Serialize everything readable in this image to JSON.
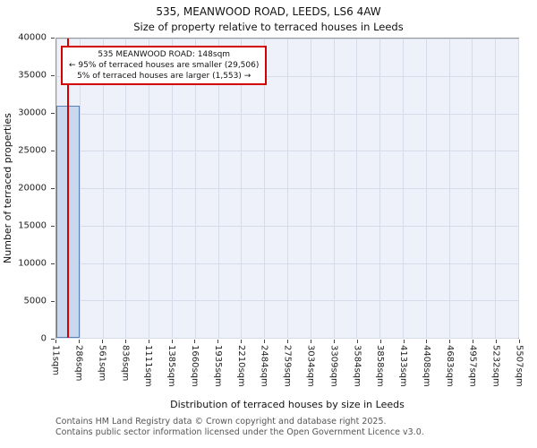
{
  "title": {
    "line1": "535, MEANWOOD ROAD, LEEDS, LS6 4AW",
    "line2": "Size of property relative to terraced houses in Leeds"
  },
  "annotation": {
    "line1": "535 MEANWOOD ROAD: 148sqm",
    "line2": "← 95% of terraced houses are smaller (29,506)",
    "line3": "5% of terraced houses are larger (1,553) →"
  },
  "footer": {
    "line1": "Contains HM Land Registry data © Crown copyright and database right 2025.",
    "line2": "Contains public sector information licensed under the Open Government Licence v3.0."
  },
  "chart_data": {
    "type": "bar",
    "title": "535, MEANWOOD ROAD, LEEDS, LS6 4AW",
    "subtitle": "Size of property relative to terraced houses in Leeds",
    "xlabel": "Distribution of terraced houses by size in Leeds",
    "ylabel": "Number of terraced properties",
    "ylim": [
      0,
      40000
    ],
    "yticks": [
      0,
      5000,
      10000,
      15000,
      20000,
      25000,
      30000,
      35000,
      40000
    ],
    "bin_edges_sqm": [
      11,
      286,
      561,
      836,
      1111,
      1385,
      1660,
      1935,
      2210,
      2484,
      2759,
      3034,
      3309,
      3584,
      3858,
      4133,
      4408,
      4683,
      4957,
      5232,
      5507
    ],
    "x_tick_labels": [
      "11sqm",
      "286sqm",
      "561sqm",
      "836sqm",
      "1111sqm",
      "1385sqm",
      "1660sqm",
      "1935sqm",
      "2210sqm",
      "2484sqm",
      "2759sqm",
      "3034sqm",
      "3309sqm",
      "3584sqm",
      "3858sqm",
      "4133sqm",
      "4408sqm",
      "4683sqm",
      "4957sqm",
      "5232sqm",
      "5507sqm"
    ],
    "values": [
      31000,
      0,
      0,
      0,
      0,
      0,
      0,
      0,
      0,
      0,
      0,
      0,
      0,
      0,
      0,
      0,
      0,
      0,
      0,
      0
    ],
    "grid": true,
    "legend": null,
    "marker": {
      "label": "535 MEANWOOD ROAD",
      "value_sqm": 148,
      "smaller_pct": 95,
      "smaller_count": "29,506",
      "larger_pct": 5,
      "larger_count": "1,553"
    },
    "colors": {
      "bar_fill": "#c9d7ef",
      "bar_edge": "#5a7fb5",
      "marker_line": "#d40000",
      "plot_bg": "#eef1f9",
      "grid_line": "#d5dbe8"
    }
  }
}
